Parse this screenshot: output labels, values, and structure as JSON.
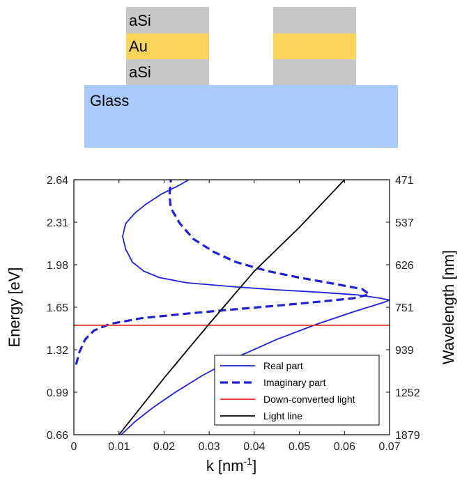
{
  "diagram": {
    "layers": {
      "top": "aSi",
      "middle": "Au",
      "bottom": "aSi",
      "substrate": "Glass"
    },
    "colors": {
      "aSi": "#c8c8c8",
      "Au": "#fbd55a",
      "Glass": "#a9cbfb"
    }
  },
  "chart_data": {
    "type": "line",
    "xlabel": "k [nm",
    "xlabel_sup": "-1",
    "xlabel_close": "]",
    "ylabel": "Energy [eV]",
    "y2label": "Wavelength [nm]",
    "xlim": [
      0,
      0.07
    ],
    "ylim": [
      0.66,
      2.64
    ],
    "x_ticks": [
      0,
      0.01,
      0.02,
      0.03,
      0.04,
      0.05,
      0.06,
      0.07
    ],
    "x_tick_labels": [
      "0",
      "0.01",
      "0.02",
      "0.03",
      "0.04",
      "0.05",
      "0.06",
      "0.07"
    ],
    "y_ticks": [
      0.66,
      0.99,
      1.32,
      1.65,
      1.98,
      2.31,
      2.64
    ],
    "y_tick_labels": [
      "0.66",
      "0.99",
      "1.32",
      "1.65",
      "1.98",
      "2.31",
      "2.64"
    ],
    "y2_tick_labels": [
      "1879",
      "1252",
      "939",
      "751",
      "626",
      "537",
      "471"
    ],
    "legend_position": "bottom-right",
    "grid": false,
    "series": [
      {
        "name": "Real part",
        "color": "#1f1fe0",
        "style": "solid",
        "points": [
          [
            0.0105,
            0.66
          ],
          [
            0.0135,
            0.76
          ],
          [
            0.0175,
            0.87
          ],
          [
            0.0225,
            0.99
          ],
          [
            0.0285,
            1.12
          ],
          [
            0.036,
            1.26
          ],
          [
            0.045,
            1.4
          ],
          [
            0.054,
            1.52
          ],
          [
            0.0625,
            1.62
          ],
          [
            0.0685,
            1.685
          ],
          [
            0.07,
            1.705
          ],
          [
            0.068,
            1.72
          ],
          [
            0.063,
            1.745
          ],
          [
            0.055,
            1.765
          ],
          [
            0.045,
            1.785
          ],
          [
            0.035,
            1.81
          ],
          [
            0.025,
            1.84
          ],
          [
            0.019,
            1.88
          ],
          [
            0.0155,
            1.93
          ],
          [
            0.013,
            2.0
          ],
          [
            0.0115,
            2.1
          ],
          [
            0.0108,
            2.2
          ],
          [
            0.0115,
            2.3
          ],
          [
            0.0135,
            2.38
          ],
          [
            0.016,
            2.45
          ],
          [
            0.0195,
            2.53
          ],
          [
            0.0235,
            2.6
          ],
          [
            0.0255,
            2.64
          ]
        ]
      },
      {
        "name": "Imaginary part",
        "color": "#1f1fe0",
        "style": "dashed",
        "points": [
          [
            0.0005,
            1.205
          ],
          [
            0.0012,
            1.3
          ],
          [
            0.0025,
            1.4
          ],
          [
            0.0045,
            1.47
          ],
          [
            0.008,
            1.52
          ],
          [
            0.015,
            1.565
          ],
          [
            0.025,
            1.6
          ],
          [
            0.036,
            1.635
          ],
          [
            0.046,
            1.665
          ],
          [
            0.055,
            1.695
          ],
          [
            0.062,
            1.72
          ],
          [
            0.0655,
            1.75
          ],
          [
            0.064,
            1.79
          ],
          [
            0.058,
            1.83
          ],
          [
            0.05,
            1.88
          ],
          [
            0.043,
            1.93
          ],
          [
            0.036,
            2.0
          ],
          [
            0.031,
            2.08
          ],
          [
            0.0265,
            2.18
          ],
          [
            0.0235,
            2.3
          ],
          [
            0.0215,
            2.42
          ],
          [
            0.0212,
            2.52
          ],
          [
            0.0215,
            2.64
          ]
        ]
      },
      {
        "name": "Down-converted light",
        "color": "#ee2b2b",
        "style": "solid",
        "points": [
          [
            0,
            1.51
          ],
          [
            0.07,
            1.51
          ]
        ]
      },
      {
        "name": "Light line",
        "color": "#000000",
        "style": "solid",
        "points": [
          [
            0.01,
            0.66
          ],
          [
            0.02,
            1.1
          ],
          [
            0.03,
            1.52
          ],
          [
            0.04,
            1.93
          ],
          [
            0.05,
            2.27
          ],
          [
            0.06,
            2.64
          ]
        ]
      }
    ]
  }
}
